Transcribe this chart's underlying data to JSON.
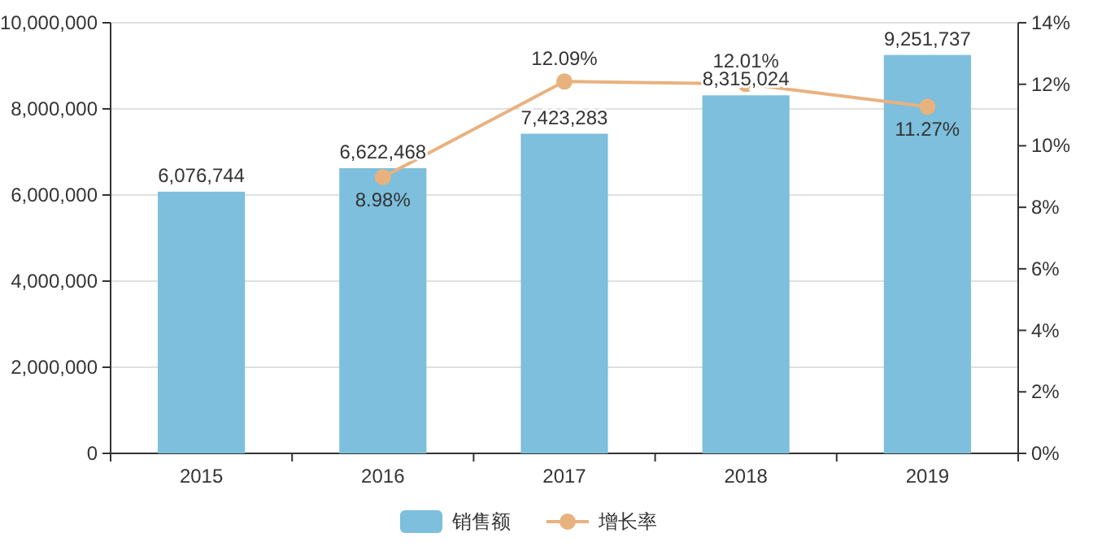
{
  "chart_data": {
    "type": "bar",
    "categories": [
      "2015",
      "2016",
      "2017",
      "2018",
      "2019"
    ],
    "series": [
      {
        "name": "销售额",
        "color": "#7dbfdc",
        "values": [
          6076744,
          6622468,
          7423283,
          8315024,
          9251737
        ],
        "value_labels": [
          "6,076,744",
          "6,622,468",
          "7,423,283",
          "8,315,024",
          "9,251,737"
        ]
      },
      {
        "name": "增长率",
        "type": "line",
        "axis": "y2",
        "color": "#e8b27f",
        "values": [
          null,
          8.98,
          12.09,
          12.01,
          11.27
        ],
        "value_labels": [
          null,
          "8.98%",
          "12.09%",
          "12.01%",
          "11.27%"
        ]
      }
    ],
    "ylim": [
      0,
      10000000
    ],
    "yticks": [
      {
        "value": 0,
        "label": "0"
      },
      {
        "value": 2000000,
        "label": "2,000,000"
      },
      {
        "value": 4000000,
        "label": "4,000,000"
      },
      {
        "value": 6000000,
        "label": "6,000,000"
      },
      {
        "value": 8000000,
        "label": "8,000,000"
      },
      {
        "value": 10000000,
        "label": "10,000,000"
      }
    ],
    "y2lim": [
      0,
      14
    ],
    "y2ticks": [
      {
        "value": 0,
        "label": "0%"
      },
      {
        "value": 2,
        "label": "2%"
      },
      {
        "value": 4,
        "label": "4%"
      },
      {
        "value": 6,
        "label": "6%"
      },
      {
        "value": 8,
        "label": "8%"
      },
      {
        "value": 10,
        "label": "10%"
      },
      {
        "value": 12,
        "label": "12%"
      },
      {
        "value": 14,
        "label": "14%"
      }
    ],
    "grid": "y",
    "legend": "bottom",
    "marker": "circle",
    "line_style": "solid"
  }
}
